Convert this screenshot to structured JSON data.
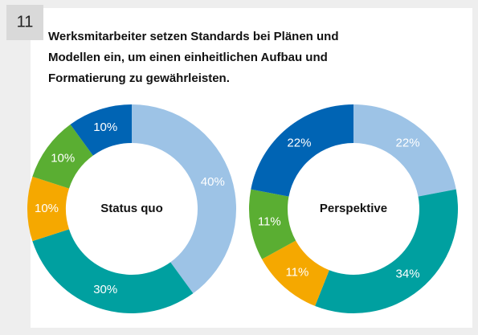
{
  "header": {
    "number": "11",
    "title_lines": [
      "Werksmitarbeiter setzen Standards bei Plänen und",
      "Modellen ein, um einen einheitlichen Aufbau und",
      "Formatierung zu gewährleisten."
    ]
  },
  "chart_data": [
    {
      "type": "donut",
      "center_label": "Status quo",
      "values": [
        40,
        30,
        10,
        10,
        10
      ],
      "value_labels": [
        "40%",
        "30%",
        "10%",
        "10%",
        "10%"
      ],
      "colors": [
        "#9dc3e6",
        "#00a0a0",
        "#f5a800",
        "#5aae32",
        "#0064b4"
      ]
    },
    {
      "type": "donut",
      "center_label": "Perspektive",
      "values": [
        22,
        34,
        11,
        11,
        22
      ],
      "value_labels": [
        "22%",
        "34%",
        "11%",
        "11%",
        "22%"
      ],
      "colors": [
        "#9dc3e6",
        "#00a0a0",
        "#f5a800",
        "#5aae32",
        "#0064b4"
      ]
    }
  ]
}
